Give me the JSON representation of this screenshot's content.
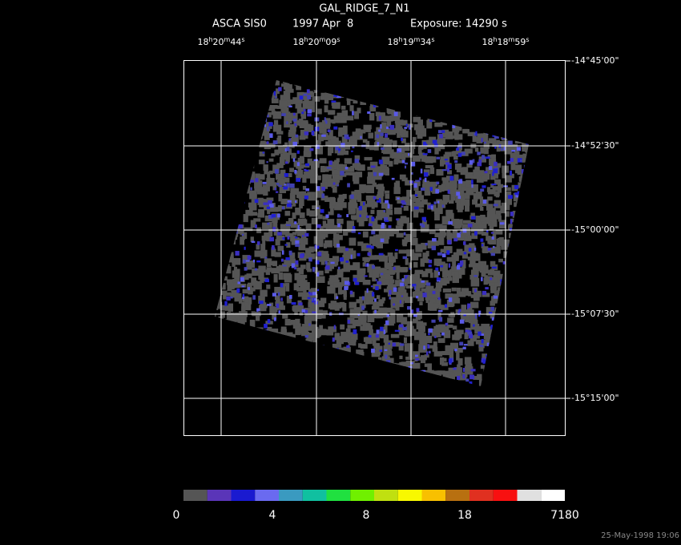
{
  "header": {
    "title": "GAL_RIDGE_7_N1",
    "instrument": "ASCA SIS0",
    "date": "1997 Apr  8",
    "exposure": "Exposure: 14290 s"
  },
  "ra_labels": [
    [
      "18",
      "h",
      "20",
      "m",
      "44",
      "s"
    ],
    [
      "18",
      "h",
      "20",
      "m",
      "09",
      "s"
    ],
    [
      "18",
      "h",
      "19",
      "m",
      "34",
      "s"
    ],
    [
      "18",
      "h",
      "18",
      "m",
      "59",
      "s"
    ]
  ],
  "dec_labels": [
    "-14°45'00\"",
    "-14°52'30\"",
    "-15°00'00\"",
    "-15°07'30\"",
    "-15°15'00\""
  ],
  "colorbar_labels": [
    "0",
    "4",
    "8",
    "18",
    "7180"
  ],
  "timestamp": "25-May-1998 19:06"
}
